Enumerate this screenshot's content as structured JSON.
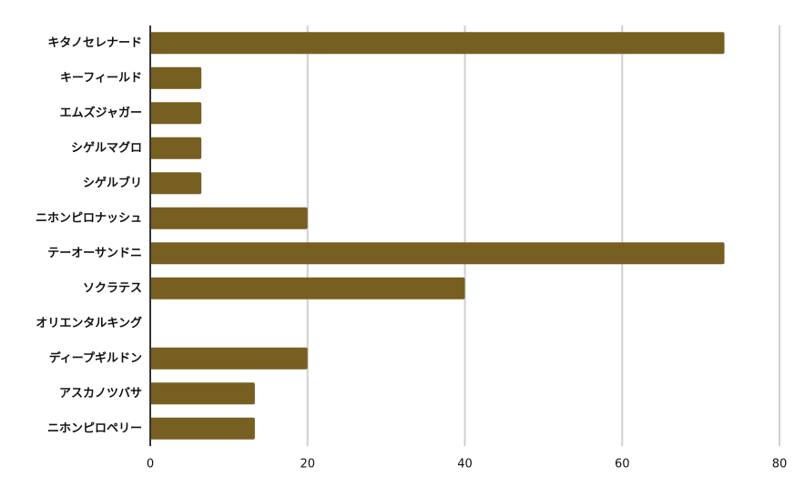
{
  "chart_data": {
    "type": "hbar",
    "categories": [
      "キタノセレナード",
      "キーフィールド",
      "エムズジャガー",
      "シゲルマグロ",
      "シゲルブリ",
      "ニホンピロナッシュ",
      "テーオーサンドニ",
      "ソクラテス",
      "オリエンタルキング",
      "ディープギルドン",
      "アスカノツバサ",
      "ニホンピロペリー"
    ],
    "values": [
      73,
      6.5,
      6.5,
      6.5,
      6.5,
      20,
      73,
      40,
      0,
      20,
      13.3,
      13.3
    ],
    "color": "#775f22",
    "xlim": [
      0,
      80
    ],
    "xticks": [
      0,
      20,
      40,
      60,
      80
    ],
    "grid": true
  }
}
